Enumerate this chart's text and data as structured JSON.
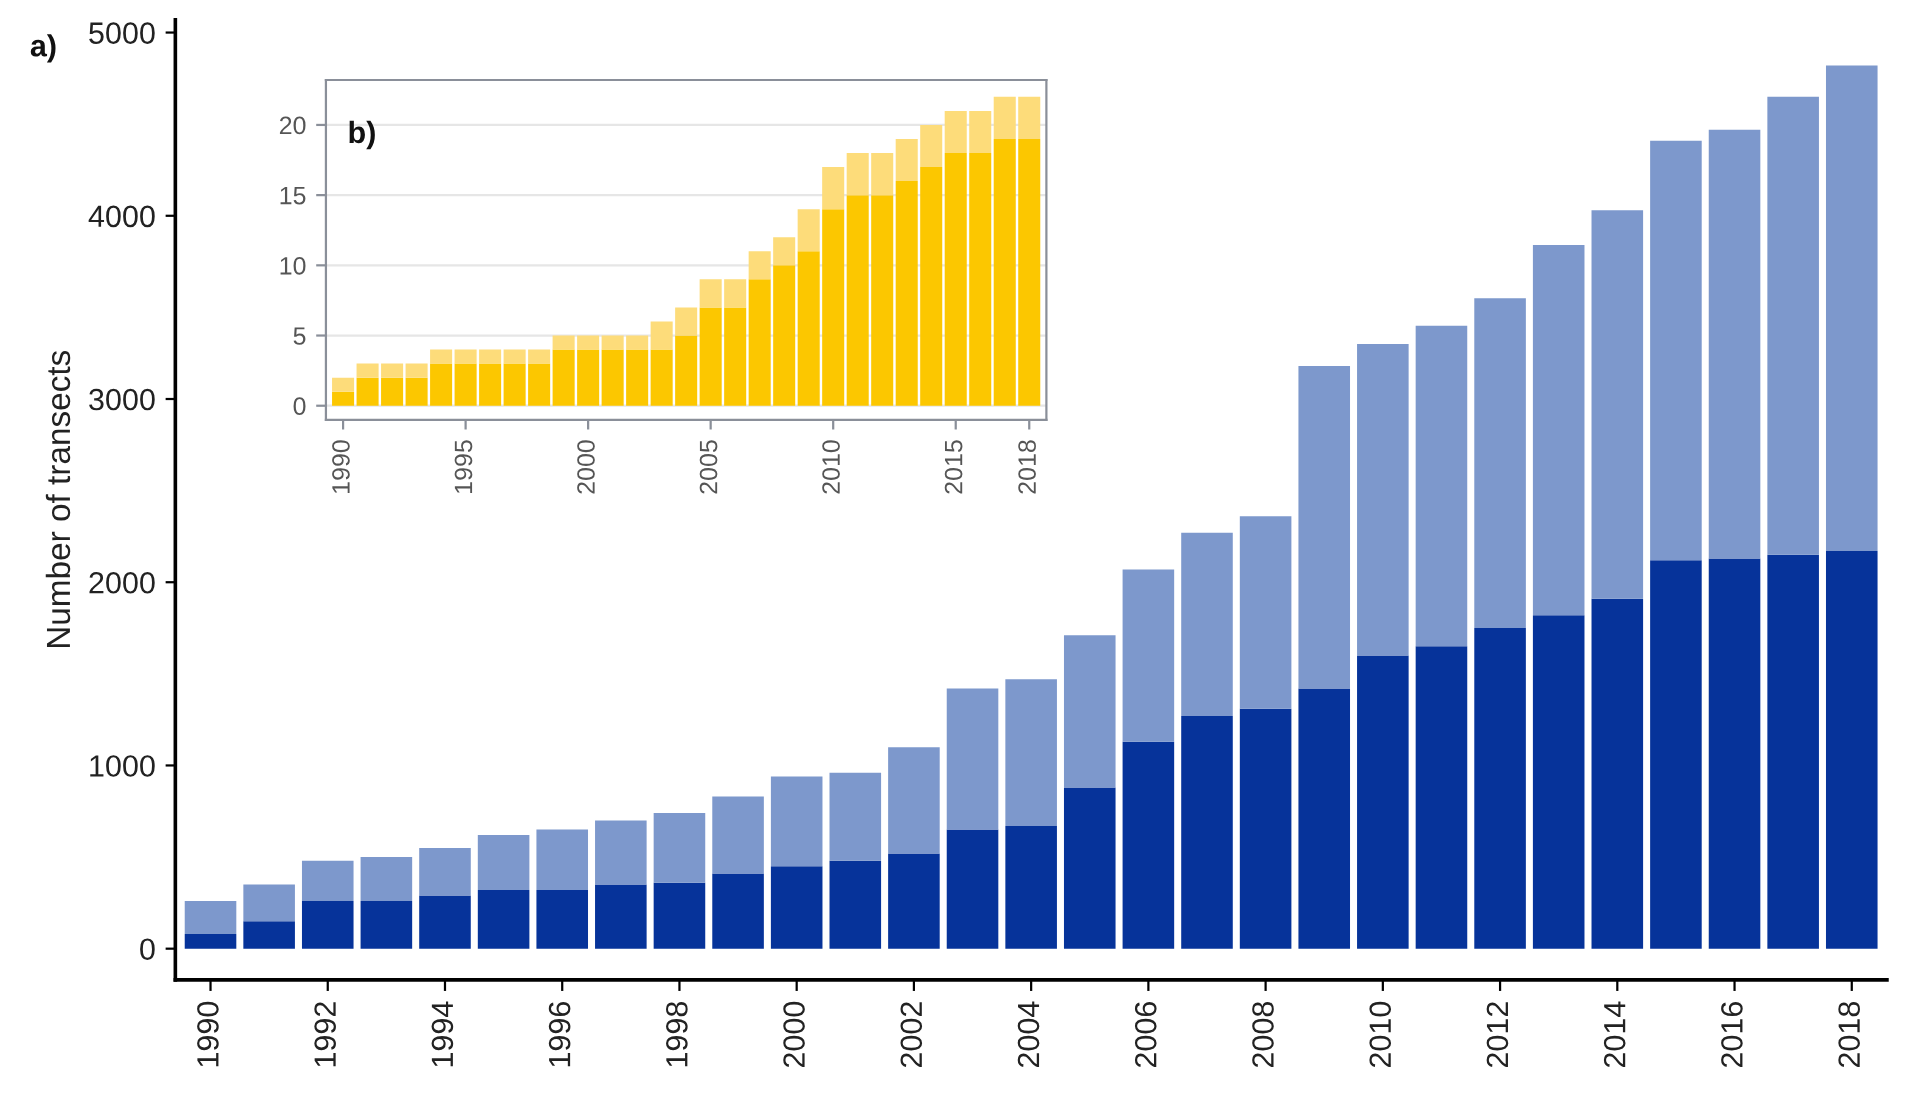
{
  "chart_data": [
    {
      "type": "bar",
      "stacked": true,
      "ylabel": "Number of transects",
      "annotations": [
        "a)"
      ],
      "categories": [
        "1990",
        null,
        "1992",
        null,
        "1994",
        null,
        "1996",
        null,
        "1998",
        null,
        "2000",
        null,
        "2002",
        null,
        "2004",
        null,
        "2006",
        null,
        "2008",
        null,
        "2010",
        null,
        "2012",
        null,
        "2014",
        null,
        "2016",
        null,
        "2018"
      ],
      "series": [
        {
          "color": "#06339a",
          "values": [
            80,
            150,
            260,
            260,
            290,
            320,
            320,
            350,
            360,
            410,
            450,
            480,
            520,
            650,
            670,
            880,
            1130,
            1270,
            1310,
            1420,
            1600,
            1650,
            1750,
            1820,
            1910,
            2120,
            2130,
            2150,
            2170
          ]
        },
        {
          "color": "#7d98cc",
          "values": [
            180,
            200,
            220,
            240,
            260,
            300,
            330,
            350,
            380,
            420,
            490,
            480,
            580,
            770,
            800,
            830,
            940,
            1000,
            1050,
            1760,
            1700,
            1750,
            1800,
            2020,
            2120,
            2290,
            2340,
            2500,
            2650
          ]
        }
      ],
      "ylim": [
        -170,
        5070
      ],
      "yticks": [
        0,
        1000,
        2000,
        3000,
        4000,
        5000
      ],
      "grid": false
    },
    {
      "type": "bar",
      "stacked": true,
      "annotations": [
        "b)"
      ],
      "x": [
        1990,
        1991,
        1992,
        1993,
        1994,
        1995,
        1996,
        1997,
        1998,
        1999,
        2000,
        2001,
        2002,
        2003,
        2004,
        2005,
        2006,
        2007,
        2008,
        2009,
        2010,
        2011,
        2012,
        2013,
        2014,
        2015,
        2016,
        2017,
        2018
      ],
      "series": [
        {
          "color": "#fcc700",
          "values": [
            1,
            2,
            2,
            2,
            3,
            3,
            3,
            3,
            3,
            4,
            4,
            4,
            4,
            4,
            5,
            7,
            7,
            9,
            10,
            11,
            14,
            15,
            15,
            16,
            17,
            18,
            18,
            19,
            19
          ]
        },
        {
          "color": "#fddc7a",
          "values": [
            1,
            1,
            1,
            1,
            1,
            1,
            1,
            1,
            1,
            1,
            1,
            1,
            1,
            2,
            2,
            2,
            2,
            2,
            2,
            3,
            3,
            3,
            3,
            3,
            3,
            3,
            3,
            3,
            3
          ]
        }
      ],
      "xlim": [
        1989.3,
        2018.7
      ],
      "xticks": [
        1990,
        1995,
        2000,
        2005,
        2010,
        2015,
        2018
      ],
      "ylim": [
        -1,
        23.2
      ],
      "yticks": [
        0,
        5,
        10,
        15,
        20
      ],
      "grid": "y"
    }
  ]
}
